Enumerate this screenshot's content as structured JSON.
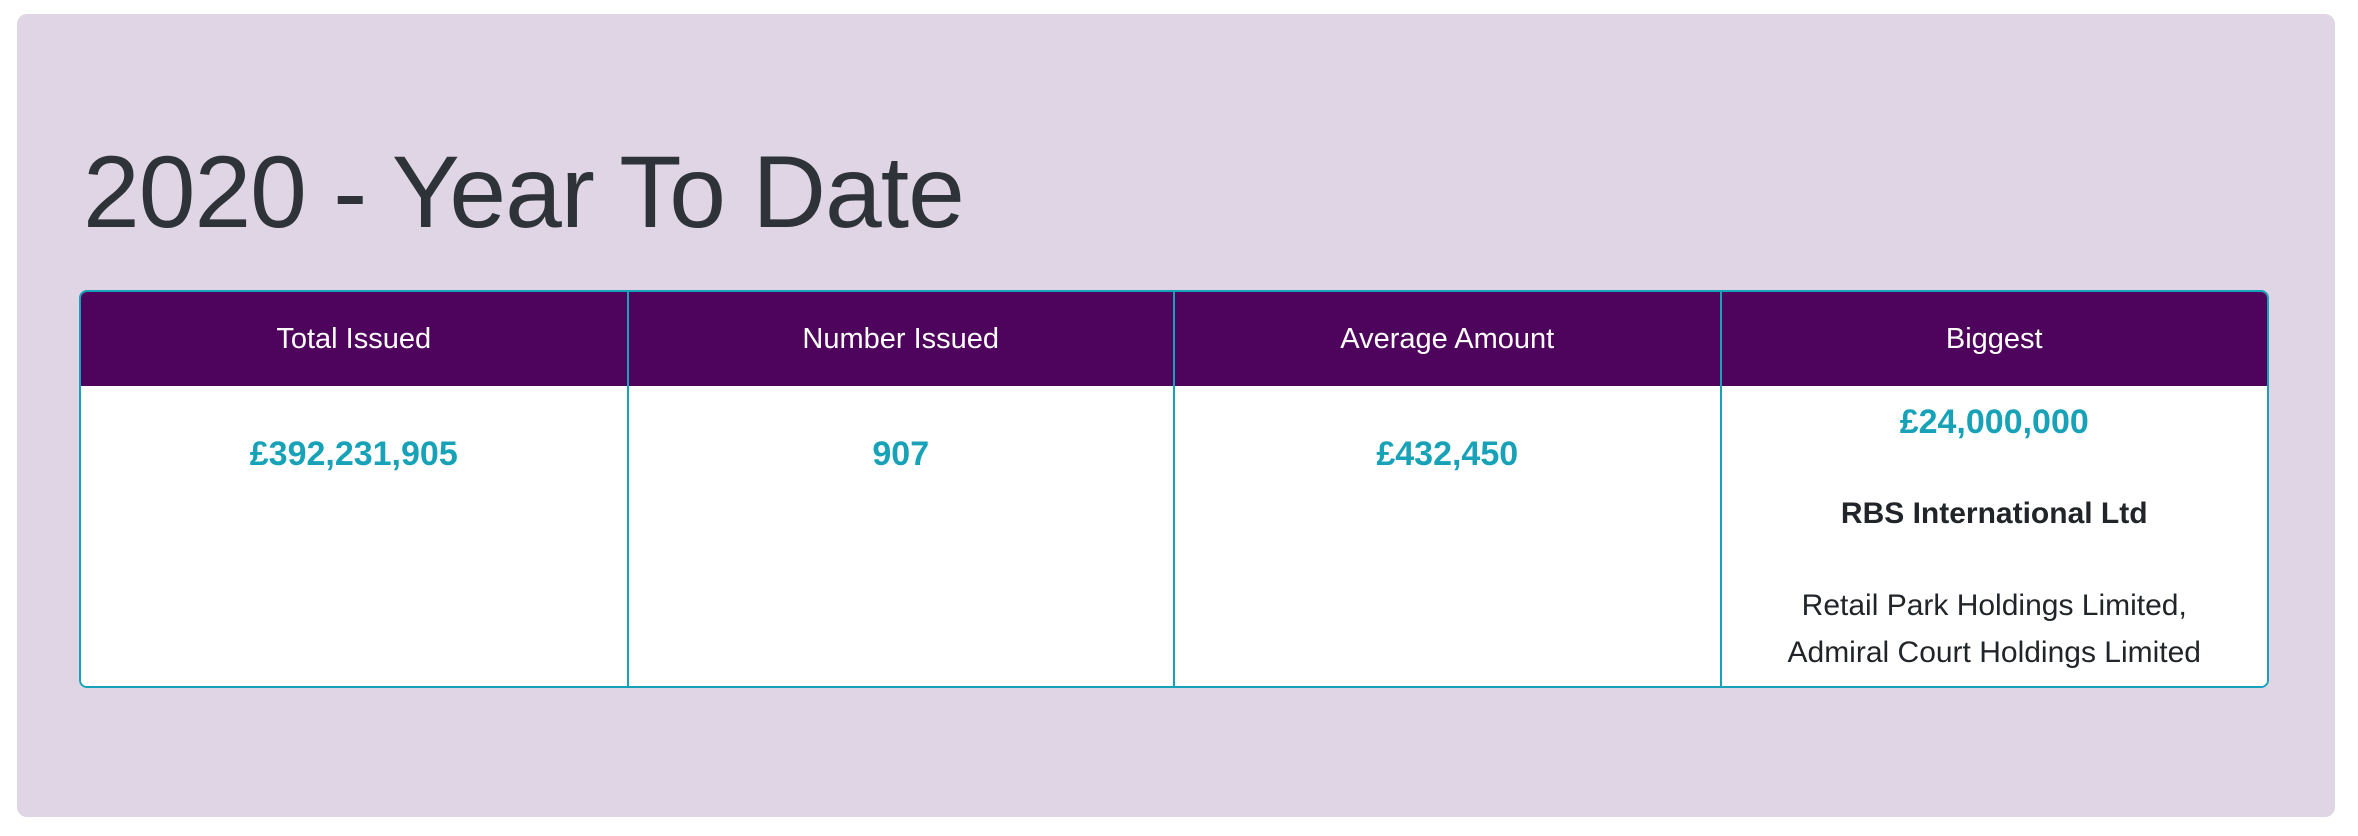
{
  "card": {
    "title": "2020 - Year To Date"
  },
  "table": {
    "columns": [
      {
        "label": "Total Issued",
        "value": "£392,231,905"
      },
      {
        "label": "Number Issued",
        "value": "907"
      },
      {
        "label": "Average Amount",
        "value": "£432,450"
      },
      {
        "label": "Biggest",
        "value": "£24,000,000",
        "issuer": "RBS International Ltd",
        "properties": "Retail Park Holdings Limited, Admiral Court Holdings Limited"
      }
    ]
  },
  "colors": {
    "page_background": "#ffffff",
    "card_background": "#e0d5e4",
    "header_background": "#4e045c",
    "header_text": "#ffffff",
    "border_teal": "#16a2b8",
    "value_teal": "#17a2b8",
    "title_text": "#2d3338",
    "body_text": "#212529"
  }
}
